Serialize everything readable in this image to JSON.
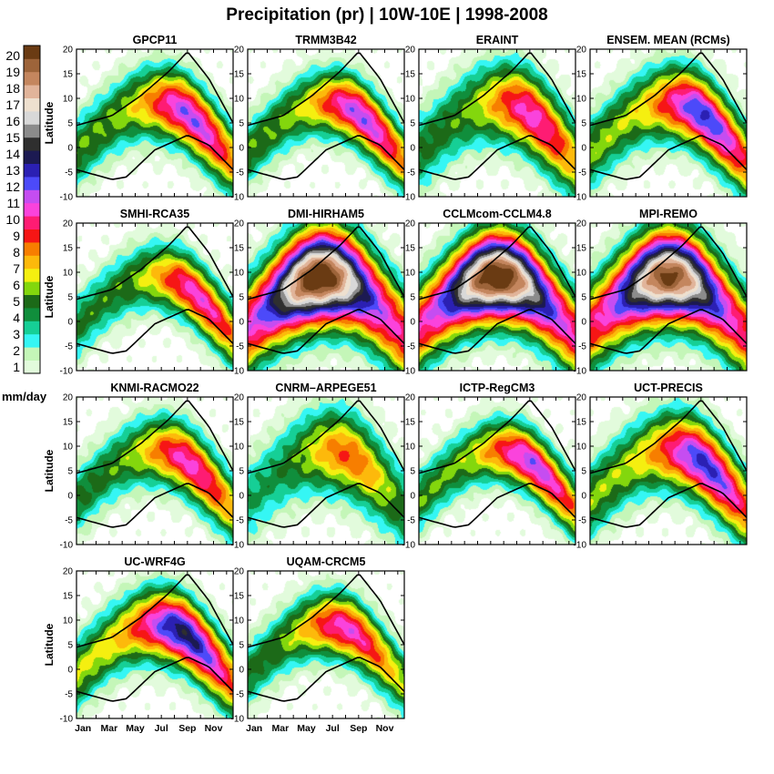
{
  "chart_data": {
    "type": "heatmap",
    "title": "Precipitation (pr) | 10W-10E | 1998-2008",
    "colorbar": {
      "unit_label": "mm/day",
      "tick_labels": [
        "1",
        "2",
        "3",
        "4",
        "5",
        "6",
        "7",
        "8",
        "9",
        "10",
        "11",
        "12",
        "13",
        "14",
        "15",
        "16",
        "17",
        "18",
        "19",
        "20"
      ],
      "colors": [
        "#e2fbdc",
        "#c4f6b8",
        "#35f6f4",
        "#16cf96",
        "#108e3c",
        "#1c6a18",
        "#83d70d",
        "#f5ef10",
        "#fdb90b",
        "#f77e00",
        "#f61615",
        "#fe1c73",
        "#fa43dc",
        "#c54df1",
        "#4c4af9",
        "#2b20b3",
        "#1c1a52",
        "#2f2f2f",
        "#8b8b8b",
        "#d8d8d8",
        "#eee0cf",
        "#e1b49a",
        "#c4865e",
        "#9d643a",
        "#6a3b13"
      ]
    },
    "x_tick_labels": [
      "Jan",
      "Mar",
      "May",
      "Jul",
      "Sep",
      "Nov"
    ],
    "ylabel": "Latitude",
    "y_tick_labels": [
      "20",
      "15",
      "10",
      "5",
      "0",
      "-5",
      "-10"
    ],
    "ylim": [
      -10,
      20
    ],
    "panels": [
      {
        "title": "GPCP11",
        "peak": 11,
        "peak_month": 8.0,
        "width": 1.1
      },
      {
        "title": "TRMM3B42",
        "peak": 11,
        "peak_month": 8.0,
        "width": 1.0
      },
      {
        "title": "ERAINT",
        "peak": 10,
        "peak_month": 8.0,
        "width": 1.25
      },
      {
        "title": "ENSEM. MEAN (RCMs)",
        "peak": 12,
        "peak_month": 8.0,
        "width": 1.15
      },
      {
        "title": "SMHI-RCA35",
        "peak": 10,
        "peak_month": 8.5,
        "width": 1.0
      },
      {
        "title": "DMI-HIRHAM5",
        "peak": 20,
        "peak_month": 5.0,
        "width": 1.45
      },
      {
        "title": "CCLMcom-CCLM4.8",
        "peak": 20,
        "peak_month": 5.5,
        "width": 1.35
      },
      {
        "title": "MPI-REMO",
        "peak": 19,
        "peak_month": 5.5,
        "width": 1.4
      },
      {
        "title": "KNMI-RACMO22",
        "peak": 10,
        "peak_month": 8.0,
        "width": 1.05
      },
      {
        "title": "CNRM–ARPEGE51",
        "peak": 8,
        "peak_month": 7.0,
        "width": 1.3
      },
      {
        "title": "ICTP-RegCM3",
        "peak": 11,
        "peak_month": 8.0,
        "width": 0.95
      },
      {
        "title": "UCT-PRECIS",
        "peak": 12,
        "peak_month": 8.0,
        "width": 1.2
      },
      {
        "title": "UC-WRF4G",
        "peak": 13,
        "peak_month": 7.5,
        "width": 1.1
      },
      {
        "title": "UQAM-CRCM5",
        "peak": 10,
        "peak_month": 7.0,
        "width": 1.0
      }
    ]
  }
}
